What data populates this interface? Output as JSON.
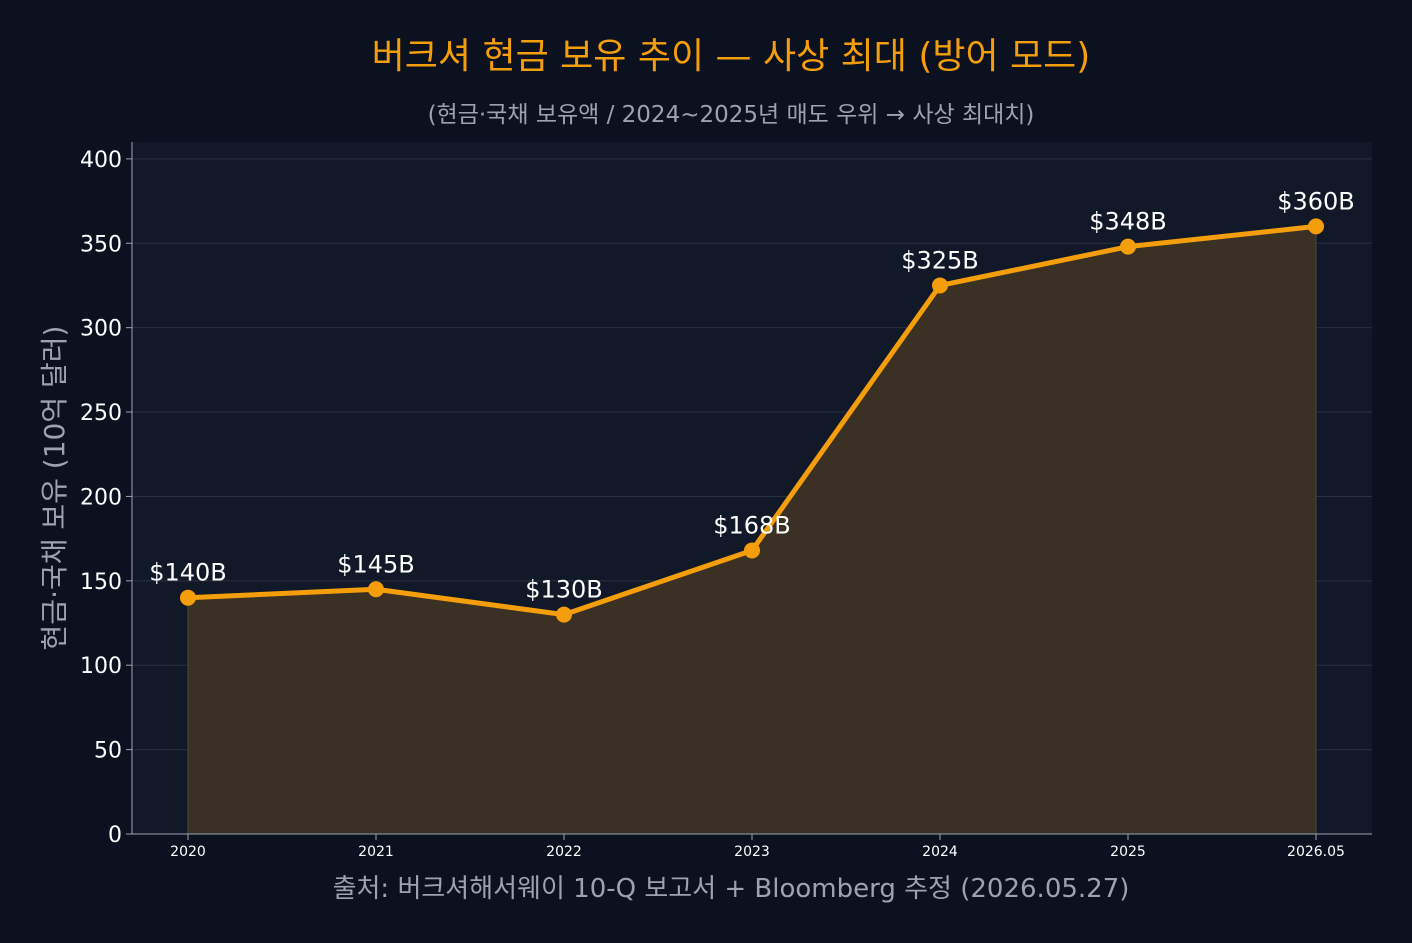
{
  "chart_data": {
    "type": "area",
    "title": "버크셔 현금 보유 추이 — 사상 최대 (방어 모드)",
    "subtitle": "(현금·국채 보유액 / 2024~2025년 매도 우위 → 사상 최대치)",
    "xlabel": "출처: 버크셔해서웨이 10-Q 보고서 + Bloomberg 추정 (2026.05.27)",
    "ylabel": "현금·국채 보유 (10억 달러)",
    "categories": [
      "2020",
      "2021",
      "2022",
      "2023",
      "2024",
      "2025",
      "2026.05"
    ],
    "series": [
      {
        "values": [
          140,
          145,
          130,
          168,
          325,
          348,
          360
        ],
        "labels": [
          "$140B",
          "$145B",
          "$130B",
          "$168B",
          "$325B",
          "$348B",
          "$360B"
        ]
      }
    ],
    "ylim": [
      0,
      410
    ],
    "yticks": [
      0,
      50,
      100,
      150,
      200,
      250,
      300,
      350,
      400
    ],
    "grid": true,
    "colors": {
      "line": "#f59e0b",
      "area": "#3a3024",
      "plot_bg": "#111827",
      "page_bg": "#0b111f",
      "title": "#f59e0b",
      "subtitle": "#9ca3af",
      "tick": "#ffffff",
      "axis_label": "#9ca3af",
      "data_label": "#ffffff",
      "grid": "#2a3142",
      "spine": "#9ca3af"
    }
  }
}
